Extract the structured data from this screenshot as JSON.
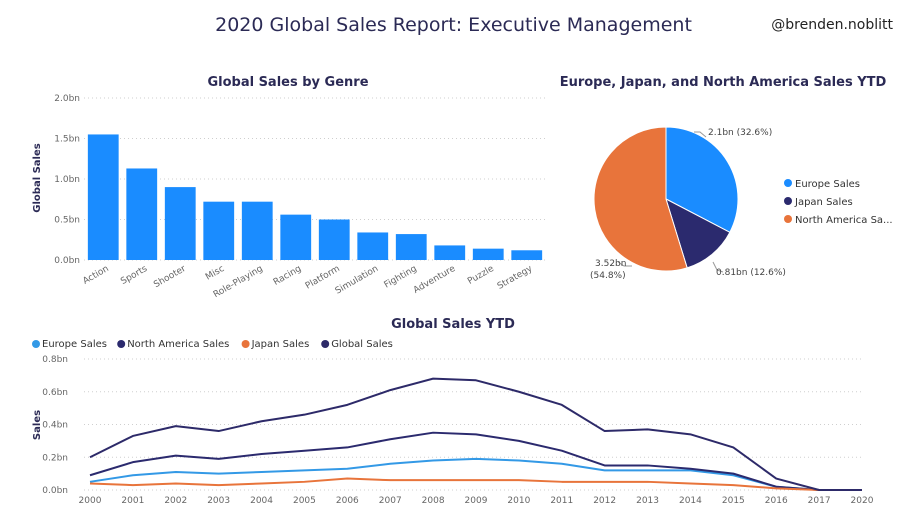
{
  "report": {
    "title": "2020 Global Sales Report: Executive Management",
    "handle": "@brenden.noblitt"
  },
  "chart_data": [
    {
      "type": "bar",
      "title": "Global Sales by Genre",
      "ylabel": "Global Sales",
      "xlabel": "",
      "categories": [
        "Action",
        "Sports",
        "Shooter",
        "Misc",
        "Role-Playing",
        "Racing",
        "Platform",
        "Simulation",
        "Fighting",
        "Adventure",
        "Puzzle",
        "Strategy"
      ],
      "values": [
        1.55,
        1.13,
        0.9,
        0.72,
        0.72,
        0.56,
        0.5,
        0.34,
        0.32,
        0.18,
        0.14,
        0.12
      ],
      "ylim": [
        0,
        2.0
      ],
      "yticks": [
        "0.0bn",
        "0.5bn",
        "1.0bn",
        "1.5bn",
        "2.0bn"
      ],
      "color": "#1a8cff",
      "grid": true
    },
    {
      "type": "pie",
      "title": "Europe, Japan, and North America Sales YTD",
      "slices": [
        {
          "name": "Europe Sales",
          "value": 2.1,
          "label": "2.1bn (32.6%)",
          "color": "#1a8cff"
        },
        {
          "name": "Japan Sales",
          "value": 0.81,
          "label": "0.81bn (12.6%)",
          "color": "#2b2a6e"
        },
        {
          "name": "North America Sa...",
          "value": 3.52,
          "label_line1": "3.52bn",
          "label_line2": "(54.8%)",
          "color": "#e8743b"
        }
      ],
      "legend": "right"
    },
    {
      "type": "line",
      "title": "Global Sales YTD",
      "ylabel": "Sales",
      "xlabel": "",
      "x": [
        "2000",
        "2001",
        "2002",
        "2003",
        "2004",
        "2005",
        "2006",
        "2007",
        "2008",
        "2009",
        "2010",
        "2011",
        "2012",
        "2013",
        "2014",
        "2015",
        "2016",
        "2017",
        "2020"
      ],
      "ylim": [
        0,
        0.8
      ],
      "yticks": [
        "0.0bn",
        "0.2bn",
        "0.4bn",
        "0.6bn",
        "0.8bn"
      ],
      "legend": "top-left",
      "grid": true,
      "series": [
        {
          "name": "Europe Sales",
          "color": "#3399e6",
          "values": [
            0.05,
            0.09,
            0.11,
            0.1,
            0.11,
            0.12,
            0.13,
            0.16,
            0.18,
            0.19,
            0.18,
            0.16,
            0.12,
            0.12,
            0.12,
            0.09,
            0.02,
            0.0,
            0.0
          ]
        },
        {
          "name": "North America Sales",
          "color": "#2b2a6e",
          "values": [
            0.09,
            0.17,
            0.21,
            0.19,
            0.22,
            0.24,
            0.26,
            0.31,
            0.35,
            0.34,
            0.3,
            0.24,
            0.15,
            0.15,
            0.13,
            0.1,
            0.02,
            0.0,
            0.0
          ]
        },
        {
          "name": "Japan Sales",
          "color": "#e8743b",
          "values": [
            0.04,
            0.03,
            0.04,
            0.03,
            0.04,
            0.05,
            0.07,
            0.06,
            0.06,
            0.06,
            0.06,
            0.05,
            0.05,
            0.05,
            0.04,
            0.03,
            0.01,
            0.0,
            0.0
          ]
        },
        {
          "name": "Global Sales",
          "color": "#2d2a69",
          "values": [
            0.2,
            0.33,
            0.39,
            0.36,
            0.42,
            0.46,
            0.52,
            0.61,
            0.68,
            0.67,
            0.6,
            0.52,
            0.36,
            0.37,
            0.34,
            0.26,
            0.07,
            0.0,
            0.0
          ]
        }
      ]
    }
  ]
}
